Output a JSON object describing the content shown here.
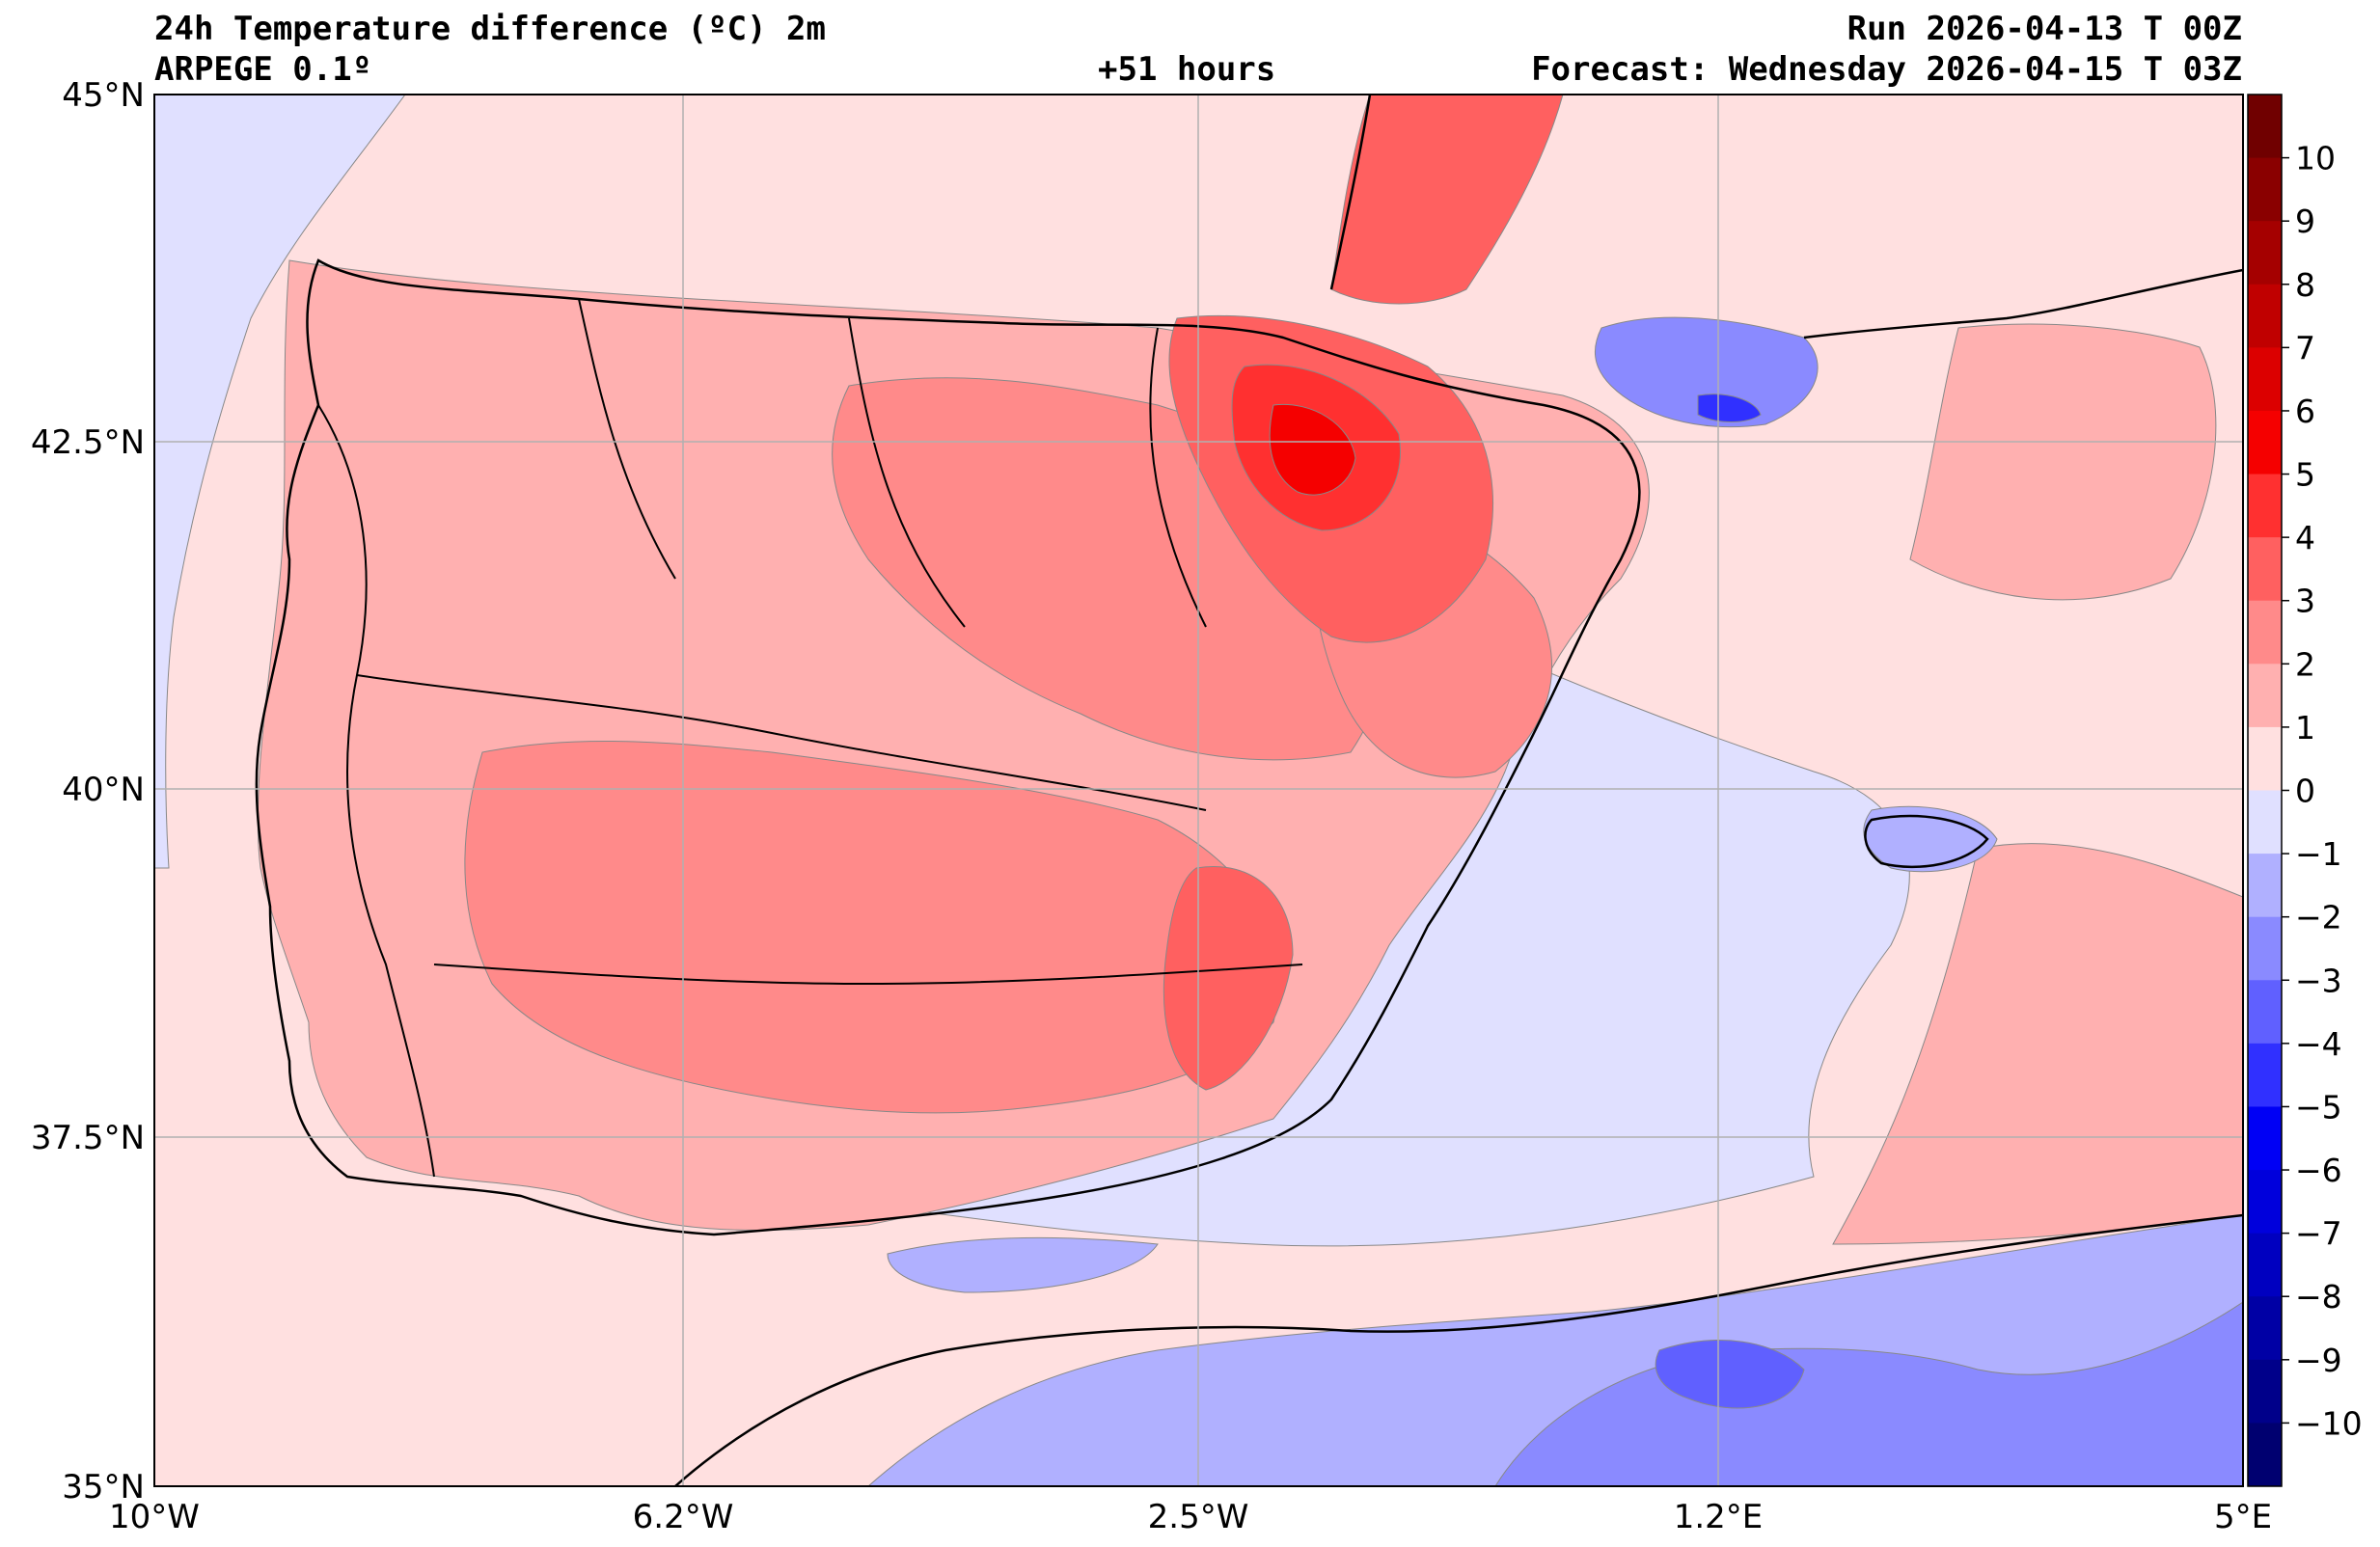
{
  "header": {
    "title": "24h Temperature difference (ºC) 2m",
    "model": "ARPEGE 0.1º",
    "lead": "+51 hours",
    "run": "Run 2026-04-13 T 00Z",
    "forecast": "Forecast: Wednesday 2026-04-15 T 03Z"
  },
  "axes": {
    "lon_labels": [
      "10°W",
      "6.2°W",
      "2.5°W",
      "1.2°E",
      "5°E"
    ],
    "lat_labels": [
      "45°N",
      "42.5°N",
      "40°N",
      "37.5°N",
      "35°N"
    ],
    "lon_range": [
      -10,
      5
    ],
    "lat_range": [
      35,
      45
    ]
  },
  "colorbar": {
    "ticks": [
      "10",
      "9",
      "8",
      "7",
      "6",
      "5",
      "4",
      "3",
      "2",
      "1",
      "0",
      "−1",
      "−2",
      "−3",
      "−4",
      "−5",
      "−6",
      "−7",
      "−8",
      "−9",
      "−10"
    ],
    "colors": [
      "#700000",
      "#8a0000",
      "#a50000",
      "#c00000",
      "#dc0000",
      "#f50000",
      "#ff3030",
      "#ff6060",
      "#ff8a8a",
      "#ffb0b0",
      "#ffe0e0",
      "#e0e0ff",
      "#b0b0ff",
      "#8a8aff",
      "#6060ff",
      "#3030ff",
      "#0000f5",
      "#0000dc",
      "#0000c0",
      "#0000a5",
      "#00008a",
      "#000070"
    ],
    "range": [
      -11,
      11
    ]
  },
  "colors": {
    "sea_base": "#ffe0e0",
    "cool": "#e0e0ff"
  }
}
